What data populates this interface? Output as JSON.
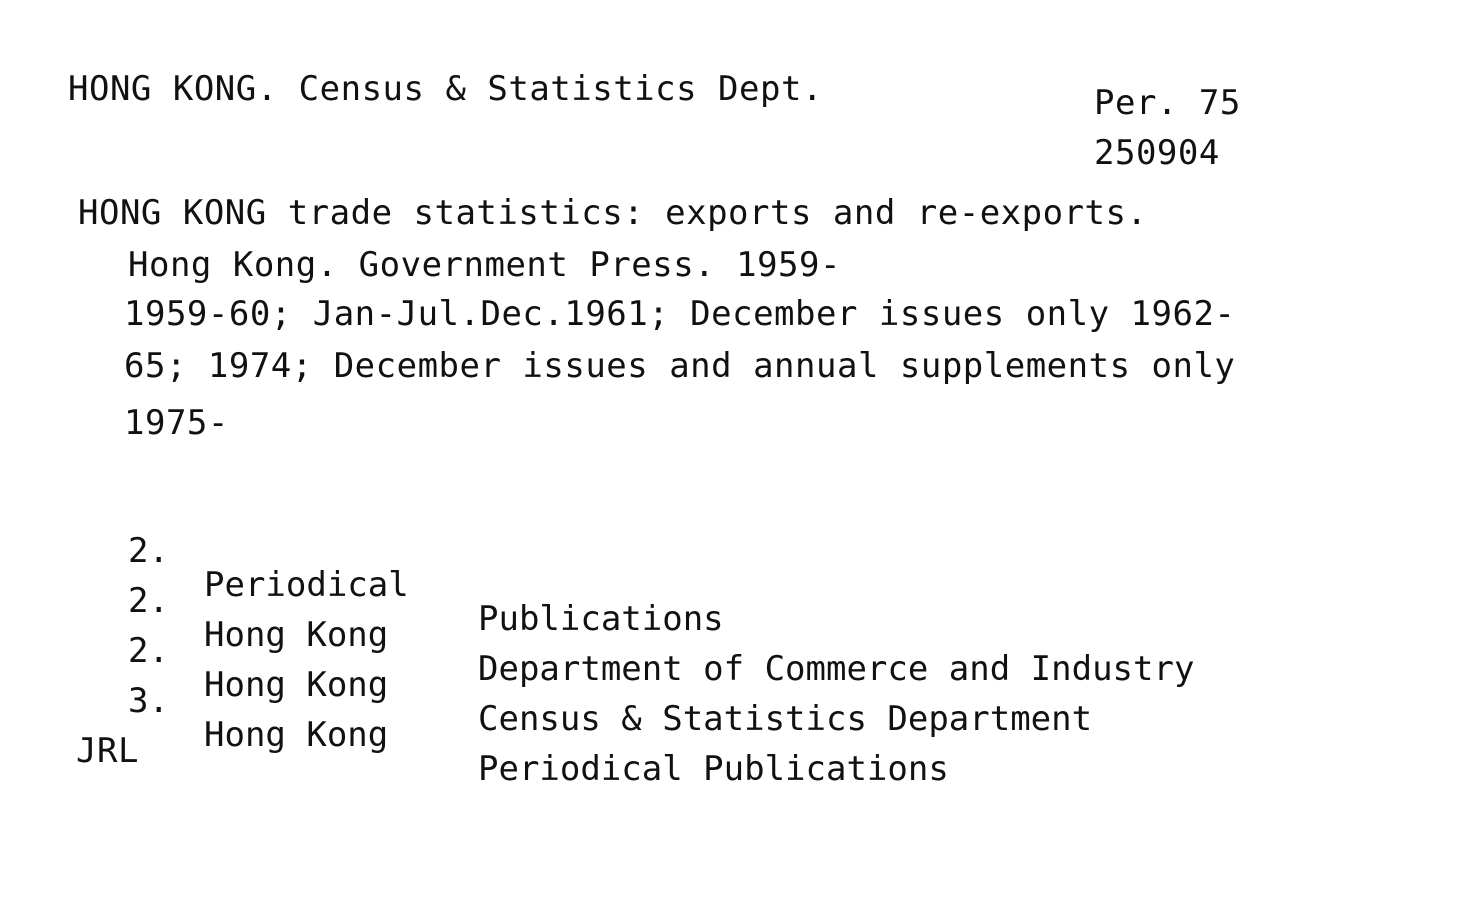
{
  "card": {
    "main_entry": "HONG KONG. Census & Statistics Dept.",
    "shelf_mark": "Per. 75",
    "accession_number": "250904",
    "title": "HONG KONG trade statistics: exports and re-exports.",
    "imprint": "Hong Kong. Government Press. 1959-",
    "holdings": [
      "1959-60; Jan-Jul.Dec.1961; December issues only 1962-",
      "65; 1974; December issues and annual supplements only",
      "1975-"
    ],
    "tracings": [
      {
        "number": "2.",
        "heading": "Periodical",
        "subheading": "Publications"
      },
      {
        "number": "2.",
        "heading": "Hong Kong",
        "subheading": "Department of Commerce and Industry"
      },
      {
        "number": "2.",
        "heading": "Hong Kong",
        "subheading": "Census & Statistics Department"
      },
      {
        "number": "3.",
        "heading": "Hong Kong",
        "subheading": "Periodical Publications"
      }
    ],
    "initials": "JRL"
  }
}
